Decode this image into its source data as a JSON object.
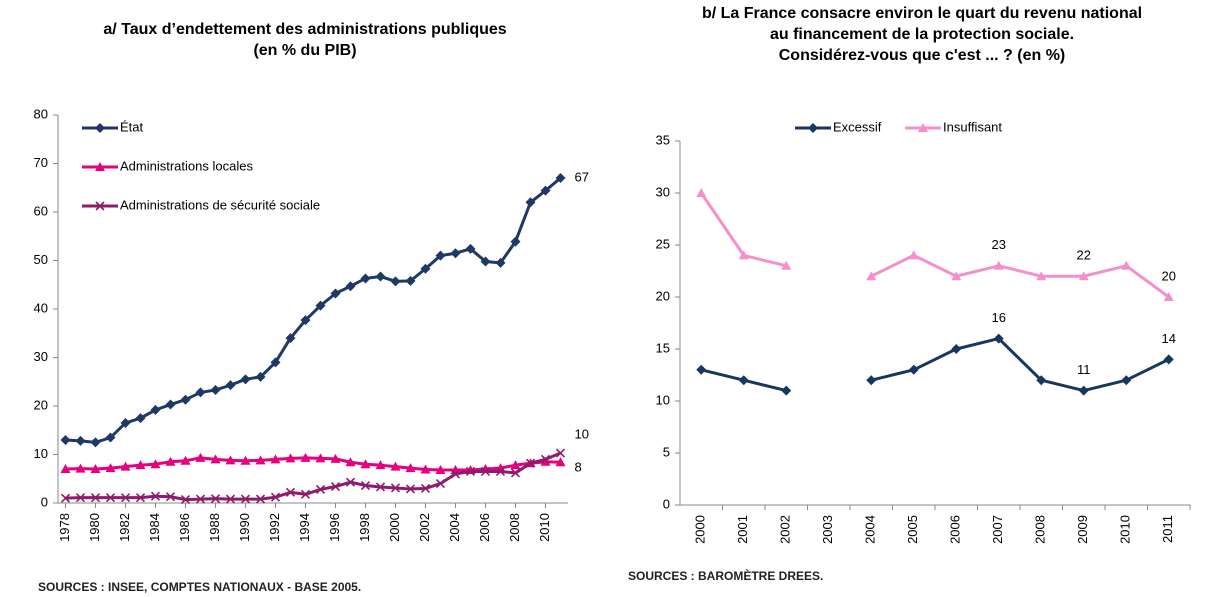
{
  "chart_data": [
    {
      "type": "line",
      "title": [
        "a/ Taux d’endettement des administrations publiques",
        "(en % du PIB)"
      ],
      "source": "SOURCES : INSEE, COMPTES NATIONAUX - BASE 2005.",
      "x": [
        1978,
        1979,
        1980,
        1981,
        1982,
        1983,
        1984,
        1985,
        1986,
        1987,
        1988,
        1989,
        1990,
        1991,
        1992,
        1993,
        1994,
        1995,
        1996,
        1997,
        1998,
        1999,
        2000,
        2001,
        2002,
        2003,
        2004,
        2005,
        2006,
        2007,
        2008,
        2009,
        2010,
        2011
      ],
      "xlim": [
        1977.5,
        2011.5
      ],
      "xticks": [
        1978,
        1980,
        1982,
        1984,
        1986,
        1988,
        1990,
        1992,
        1994,
        1996,
        1998,
        2000,
        2002,
        2004,
        2006,
        2008,
        2010
      ],
      "ylim": [
        0,
        80
      ],
      "yticks": [
        0,
        10,
        20,
        30,
        40,
        50,
        60,
        70,
        80
      ],
      "legend": "upper left",
      "label_position": "right",
      "series": [
        {
          "name": "État",
          "color": "#1f3864",
          "marker": "diamond",
          "values": [
            13,
            12.8,
            12.5,
            13.5,
            16.5,
            17.5,
            19.2,
            20.3,
            21.3,
            22.8,
            23.3,
            24.3,
            25.5,
            26,
            29,
            34,
            37.7,
            40.7,
            43.2,
            44.7,
            46.3,
            46.7,
            45.7,
            45.8,
            48.3,
            51,
            51.5,
            52.4,
            49.8,
            49.5,
            53.9,
            62,
            64.4,
            67
          ],
          "value_labels": [
            null,
            null,
            null,
            null,
            null,
            null,
            null,
            null,
            null,
            null,
            null,
            null,
            null,
            null,
            null,
            null,
            null,
            null,
            null,
            null,
            null,
            null,
            null,
            null,
            null,
            null,
            null,
            null,
            null,
            null,
            null,
            null,
            null,
            "67"
          ]
        },
        {
          "name": "Administrations locales",
          "color": "#e6007e",
          "marker": "triangle",
          "values": [
            7,
            7.1,
            7,
            7.2,
            7.5,
            7.8,
            8,
            8.5,
            8.7,
            9.3,
            9,
            8.8,
            8.7,
            8.8,
            9,
            9.2,
            9.3,
            9.2,
            9.1,
            8.4,
            8,
            7.8,
            7.5,
            7.2,
            6.9,
            6.8,
            6.8,
            6.8,
            7,
            7.2,
            7.8,
            8.2,
            8.5,
            8.4
          ],
          "value_labels": [
            null,
            null,
            null,
            null,
            null,
            null,
            null,
            null,
            null,
            null,
            null,
            null,
            null,
            null,
            null,
            null,
            null,
            null,
            null,
            null,
            null,
            null,
            null,
            null,
            null,
            null,
            null,
            null,
            null,
            null,
            null,
            null,
            null,
            "8"
          ]
        },
        {
          "name": "Administrations de sécurité sociale",
          "color": "#8e1b6e",
          "marker": "x",
          "values": [
            1,
            1.1,
            1.1,
            1.1,
            1.1,
            1.1,
            1.4,
            1.3,
            0.7,
            0.8,
            0.9,
            0.8,
            0.8,
            0.8,
            1.2,
            2.2,
            1.8,
            2.8,
            3.4,
            4.3,
            3.6,
            3.3,
            3.1,
            2.9,
            3,
            4,
            6,
            6.5,
            6.5,
            6.5,
            6.2,
            8.2,
            9,
            10.3
          ],
          "value_labels": [
            null,
            null,
            null,
            null,
            null,
            null,
            null,
            null,
            null,
            null,
            null,
            null,
            null,
            null,
            null,
            null,
            null,
            null,
            null,
            null,
            null,
            null,
            null,
            null,
            null,
            null,
            null,
            null,
            null,
            null,
            null,
            null,
            null,
            "10"
          ]
        }
      ]
    },
    {
      "type": "line",
      "title": [
        "b/ La France consacre environ le quart du revenu national",
        "au financement de la protection sociale.",
        "Considérez-vous que c'est ... ? (en %)"
      ],
      "source": "SOURCES : BAROMÈTRE DREES.",
      "categories": [
        "2000",
        "2001",
        "2002",
        "2003",
        "2004",
        "2005",
        "2006",
        "2007",
        "2008",
        "2009",
        "2010",
        "2011"
      ],
      "ylim": [
        0,
        35
      ],
      "yticks": [
        0,
        5,
        10,
        15,
        20,
        25,
        30,
        35
      ],
      "legend": "top",
      "label_position": "above",
      "series": [
        {
          "name": "Excessif",
          "color": "#17375e",
          "marker": "diamond",
          "values": [
            13,
            12,
            11,
            null,
            12,
            13,
            15,
            16,
            12,
            11,
            12,
            14
          ],
          "value_labels": [
            null,
            null,
            null,
            null,
            null,
            null,
            null,
            "16",
            null,
            "11",
            null,
            "14"
          ]
        },
        {
          "name": "Insuffisant",
          "color": "#f48fcb",
          "marker": "triangle",
          "values": [
            30,
            24,
            23,
            null,
            22,
            24,
            22,
            23,
            22,
            22,
            23,
            20
          ],
          "value_labels": [
            null,
            null,
            null,
            null,
            null,
            null,
            null,
            "23",
            null,
            "22",
            null,
            "20"
          ]
        }
      ]
    }
  ]
}
